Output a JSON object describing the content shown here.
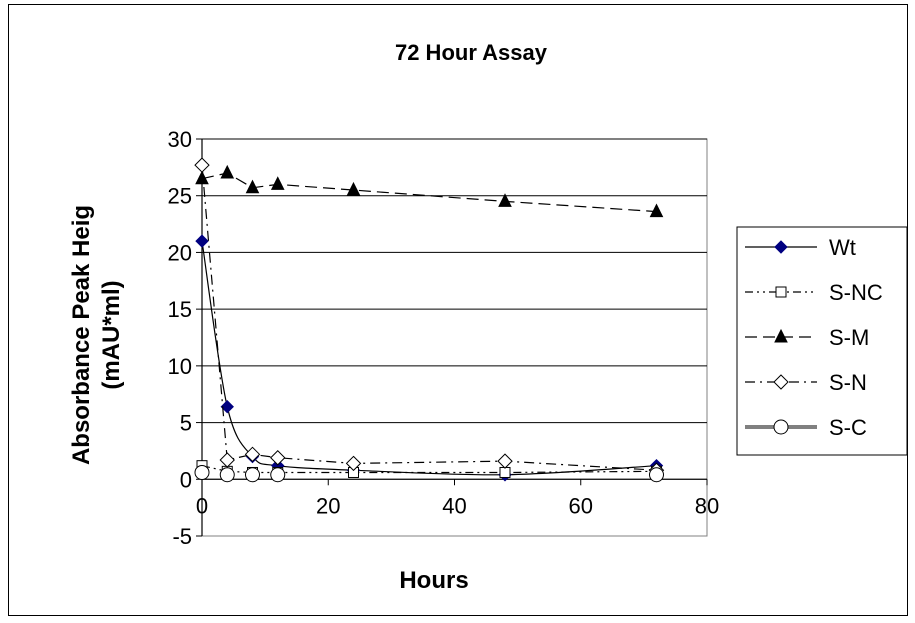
{
  "chart_data": {
    "type": "line",
    "title": "72 Hour Assay",
    "xlabel": "Hours",
    "ylabel_line1": "Absorbance Peak Heig",
    "ylabel_line2": "(mAU*ml)",
    "xlim": [
      0,
      80
    ],
    "ylim": [
      -5,
      30
    ],
    "xticks": [
      0,
      20,
      40,
      60,
      80
    ],
    "yticks": [
      -5,
      0,
      5,
      10,
      15,
      20,
      25,
      30
    ],
    "grid": "horizontal",
    "legend_position": "right",
    "series": [
      {
        "name": "Wt",
        "marker": "filled-diamond",
        "color": "#000080",
        "line": "solid",
        "smooth": true,
        "x": [
          0,
          4,
          8,
          12,
          24,
          48,
          72
        ],
        "y": [
          21,
          6.4,
          2.0,
          1.2,
          0.8,
          0.4,
          1.2
        ]
      },
      {
        "name": "S-NC",
        "marker": "open-square",
        "color": "#000000",
        "line": "dash-dot-dot",
        "x": [
          0,
          4,
          8,
          12,
          24,
          48,
          72
        ],
        "y": [
          1.2,
          0.7,
          0.6,
          0.6,
          0.6,
          0.6,
          0.7
        ]
      },
      {
        "name": "S-M",
        "marker": "filled-triangle",
        "color": "#000000",
        "line": "dashed",
        "x": [
          0,
          4,
          8,
          12,
          24,
          48,
          72
        ],
        "y": [
          26.5,
          27.0,
          25.7,
          26.0,
          25.5,
          24.5,
          23.6
        ]
      },
      {
        "name": "S-N",
        "marker": "open-diamond",
        "color": "#000000",
        "line": "dash-dot",
        "x": [
          0,
          4,
          8,
          12,
          24,
          48,
          72
        ],
        "y": [
          27.7,
          1.7,
          2.2,
          1.9,
          1.4,
          1.6,
          0.8
        ]
      },
      {
        "name": "S-C",
        "marker": "open-circle",
        "color": "#808080",
        "line": "solid-thick",
        "x": [
          0,
          4,
          8,
          12,
          24,
          48,
          72
        ],
        "y": [
          0.6,
          0.4,
          0.4,
          0.4,
          null,
          null,
          0.4
        ]
      }
    ]
  }
}
